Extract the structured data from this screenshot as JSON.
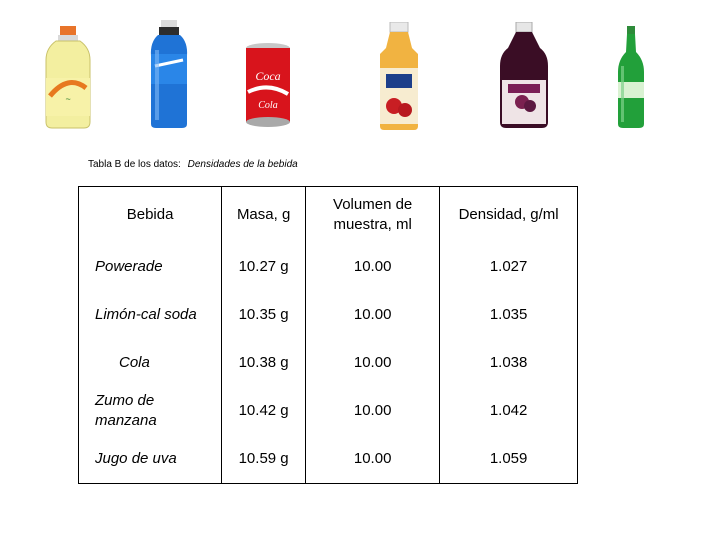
{
  "images": [
    {
      "icon": "powerade-bottle-icon",
      "color": "#f2ef9a"
    },
    {
      "icon": "blue-sports-bottle-icon",
      "color": "#1f73d6"
    },
    {
      "icon": "coca-cola-can-icon",
      "color": "#d8141c"
    },
    {
      "icon": "apple-juice-bottle-icon",
      "color": "#f1b341"
    },
    {
      "icon": "grape-juice-bottle-icon",
      "color": "#3a0d25"
    },
    {
      "icon": "green-soda-bottle-icon",
      "color": "#22a03a"
    }
  ],
  "caption": {
    "label": "Tabla B de los datos:",
    "title": "Densidades de la bebida"
  },
  "table": {
    "headers": [
      "Bebida",
      "Masa, g",
      "Volumen de muestra, ml",
      "Densidad, g/ml"
    ],
    "rows": [
      {
        "name": "Powerade",
        "mass": "10.27 g",
        "volume": "10.00",
        "density": "1.027"
      },
      {
        "name": "Limón-cal soda",
        "mass": "10.35 g",
        "volume": "10.00",
        "density": "1.035"
      },
      {
        "name": "Cola",
        "mass": "10.38 g",
        "volume": "10.00",
        "density": "1.038"
      },
      {
        "name": "Zumo de manzana",
        "mass": "10.42 g",
        "volume": "10.00",
        "density": "1.042"
      },
      {
        "name": "Jugo de uva",
        "mass": "10.59 g",
        "volume": "10.00",
        "density": "1.059"
      }
    ]
  }
}
